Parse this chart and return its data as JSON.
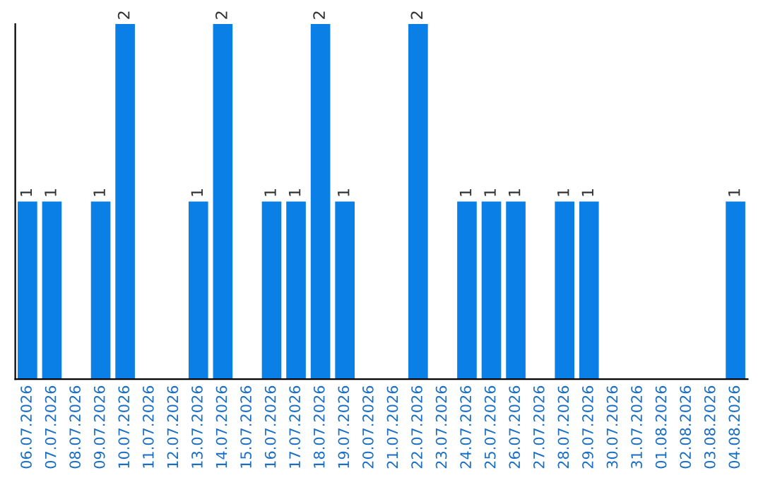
{
  "chart_data": {
    "type": "bar",
    "categories": [
      "06.07.2026",
      "07.07.2026",
      "08.07.2026",
      "09.07.2026",
      "10.07.2026",
      "11.07.2026",
      "12.07.2026",
      "13.07.2026",
      "14.07.2026",
      "15.07.2026",
      "16.07.2026",
      "17.07.2026",
      "18.07.2026",
      "19.07.2026",
      "20.07.2026",
      "21.07.2026",
      "22.07.2026",
      "23.07.2026",
      "24.07.2026",
      "25.07.2026",
      "26.07.2026",
      "27.07.2026",
      "28.07.2026",
      "29.07.2026",
      "30.07.2026",
      "31.07.2026",
      "01.08.2026",
      "02.08.2026",
      "03.08.2026",
      "04.08.2026"
    ],
    "values": [
      1,
      1,
      0,
      1,
      2,
      0,
      0,
      1,
      2,
      0,
      1,
      1,
      2,
      1,
      0,
      0,
      2,
      0,
      1,
      1,
      1,
      0,
      1,
      1,
      0,
      0,
      0,
      0,
      0,
      1
    ],
    "value_labels": [
      "1",
      "1",
      null,
      "1",
      "2",
      null,
      null,
      "1",
      "2",
      null,
      "1",
      "1",
      "2",
      "1",
      null,
      null,
      "2",
      null,
      "1",
      "1",
      "1",
      null,
      "1",
      "1",
      null,
      null,
      null,
      null,
      null,
      "1"
    ],
    "color": "#0a7fe6",
    "ylim": [
      0,
      2
    ],
    "tick_labels": "x",
    "grid": false,
    "legend": false
  }
}
